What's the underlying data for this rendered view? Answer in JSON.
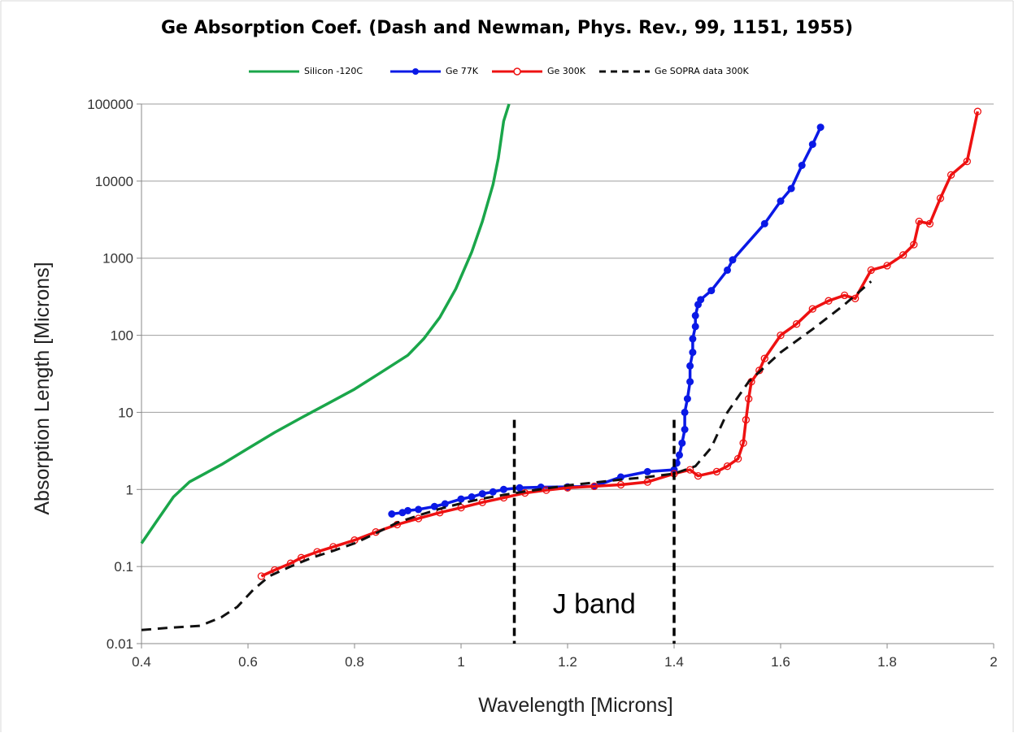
{
  "chart_data": {
    "type": "line",
    "title": "Ge Absorption Coef. (Dash and Newman, Phys. Rev., 99, 1151, 1955)",
    "xlabel": "Wavelength [Microns]",
    "ylabel": "Absorption Length [Microns]",
    "xlim": [
      0.4,
      2
    ],
    "ylim": [
      0.01,
      100000
    ],
    "y_scale": "log",
    "x_ticks": [
      "0.4",
      "0.6",
      "0.8",
      "1",
      "1.2",
      "1.4",
      "1.6",
      "1.8",
      "2"
    ],
    "y_ticks": [
      "0.01",
      "0.1",
      "1",
      "10",
      "100",
      "1000",
      "10000",
      "100000"
    ],
    "grid": "horizontal",
    "legend_position": "top",
    "series": [
      {
        "name": "Silicon -120C",
        "color": "#1aa64a",
        "marker": "none",
        "points": [
          [
            0.4,
            0.2
          ],
          [
            0.43,
            0.4
          ],
          [
            0.46,
            0.8
          ],
          [
            0.49,
            1.25
          ],
          [
            0.55,
            2.1
          ],
          [
            0.6,
            3.4
          ],
          [
            0.65,
            5.5
          ],
          [
            0.7,
            8.5
          ],
          [
            0.75,
            13
          ],
          [
            0.8,
            20
          ],
          [
            0.85,
            33
          ],
          [
            0.9,
            55
          ],
          [
            0.93,
            90
          ],
          [
            0.96,
            170
          ],
          [
            0.99,
            400
          ],
          [
            1.02,
            1200
          ],
          [
            1.04,
            3000
          ],
          [
            1.06,
            9000
          ],
          [
            1.07,
            20000
          ],
          [
            1.08,
            60000
          ],
          [
            1.09,
            100000
          ]
        ]
      },
      {
        "name": "Ge 77K",
        "color": "#0a19e6",
        "marker": "filled",
        "points": [
          [
            0.87,
            0.48
          ],
          [
            0.89,
            0.5
          ],
          [
            0.9,
            0.53
          ],
          [
            0.92,
            0.55
          ],
          [
            0.95,
            0.6
          ],
          [
            0.97,
            0.65
          ],
          [
            1.0,
            0.75
          ],
          [
            1.02,
            0.8
          ],
          [
            1.04,
            0.88
          ],
          [
            1.06,
            0.93
          ],
          [
            1.08,
            1.0
          ],
          [
            1.11,
            1.05
          ],
          [
            1.15,
            1.07
          ],
          [
            1.2,
            1.08
          ],
          [
            1.25,
            1.1
          ],
          [
            1.3,
            1.45
          ],
          [
            1.35,
            1.7
          ],
          [
            1.4,
            1.8
          ],
          [
            1.405,
            2.2
          ],
          [
            1.41,
            2.8
          ],
          [
            1.415,
            4
          ],
          [
            1.42,
            6
          ],
          [
            1.42,
            10
          ],
          [
            1.425,
            15
          ],
          [
            1.43,
            25
          ],
          [
            1.43,
            40
          ],
          [
            1.435,
            60
          ],
          [
            1.435,
            90
          ],
          [
            1.44,
            130
          ],
          [
            1.44,
            180
          ],
          [
            1.445,
            250
          ],
          [
            1.45,
            290
          ],
          [
            1.47,
            380
          ],
          [
            1.5,
            700
          ],
          [
            1.51,
            950
          ],
          [
            1.57,
            2800
          ],
          [
            1.6,
            5500
          ],
          [
            1.62,
            8000
          ],
          [
            1.64,
            16000
          ],
          [
            1.66,
            30000
          ],
          [
            1.675,
            50000
          ]
        ]
      },
      {
        "name": "Ge 300K",
        "color": "#ee1111",
        "marker": "open",
        "points": [
          [
            0.625,
            0.075
          ],
          [
            0.65,
            0.09
          ],
          [
            0.68,
            0.11
          ],
          [
            0.7,
            0.13
          ],
          [
            0.73,
            0.155
          ],
          [
            0.76,
            0.18
          ],
          [
            0.8,
            0.22
          ],
          [
            0.84,
            0.28
          ],
          [
            0.88,
            0.35
          ],
          [
            0.92,
            0.42
          ],
          [
            0.96,
            0.5
          ],
          [
            1.0,
            0.58
          ],
          [
            1.04,
            0.68
          ],
          [
            1.08,
            0.78
          ],
          [
            1.12,
            0.9
          ],
          [
            1.16,
            0.98
          ],
          [
            1.2,
            1.05
          ],
          [
            1.25,
            1.1
          ],
          [
            1.3,
            1.15
          ],
          [
            1.35,
            1.25
          ],
          [
            1.4,
            1.6
          ],
          [
            1.43,
            1.8
          ],
          [
            1.445,
            1.5
          ],
          [
            1.48,
            1.7
          ],
          [
            1.5,
            2.0
          ],
          [
            1.52,
            2.5
          ],
          [
            1.53,
            4
          ],
          [
            1.535,
            8
          ],
          [
            1.54,
            15
          ],
          [
            1.545,
            25
          ],
          [
            1.56,
            35
          ],
          [
            1.57,
            50
          ],
          [
            1.6,
            100
          ],
          [
            1.63,
            140
          ],
          [
            1.66,
            220
          ],
          [
            1.69,
            280
          ],
          [
            1.72,
            330
          ],
          [
            1.74,
            300
          ],
          [
            1.77,
            700
          ],
          [
            1.8,
            800
          ],
          [
            1.83,
            1100
          ],
          [
            1.85,
            1500
          ],
          [
            1.86,
            3000
          ],
          [
            1.88,
            2800
          ],
          [
            1.9,
            6000
          ],
          [
            1.92,
            12000
          ],
          [
            1.95,
            18000
          ],
          [
            1.97,
            80000
          ]
        ]
      },
      {
        "name": "Ge SOPRA data 300K",
        "color": "#111111",
        "marker": "none",
        "dashed": true,
        "points": [
          [
            0.4,
            0.015
          ],
          [
            0.45,
            0.016
          ],
          [
            0.51,
            0.017
          ],
          [
            0.55,
            0.022
          ],
          [
            0.58,
            0.03
          ],
          [
            0.61,
            0.05
          ],
          [
            0.64,
            0.075
          ],
          [
            0.68,
            0.1
          ],
          [
            0.72,
            0.13
          ],
          [
            0.76,
            0.16
          ],
          [
            0.8,
            0.2
          ],
          [
            0.84,
            0.27
          ],
          [
            0.88,
            0.37
          ],
          [
            0.92,
            0.46
          ],
          [
            0.96,
            0.56
          ],
          [
            1.0,
            0.66
          ],
          [
            1.04,
            0.76
          ],
          [
            1.08,
            0.85
          ],
          [
            1.12,
            0.94
          ],
          [
            1.16,
            1.03
          ],
          [
            1.2,
            1.13
          ],
          [
            1.25,
            1.23
          ],
          [
            1.3,
            1.34
          ],
          [
            1.35,
            1.45
          ],
          [
            1.4,
            1.6
          ],
          [
            1.44,
            2.0
          ],
          [
            1.47,
            3.5
          ],
          [
            1.5,
            10
          ],
          [
            1.54,
            25
          ],
          [
            1.6,
            60
          ],
          [
            1.66,
            120
          ],
          [
            1.72,
            250
          ],
          [
            1.77,
            500
          ]
        ]
      }
    ],
    "annotations": {
      "band_label": "J band",
      "band_lines_x": [
        1.1,
        1.4
      ],
      "band_lines_y_top": 8
    }
  }
}
